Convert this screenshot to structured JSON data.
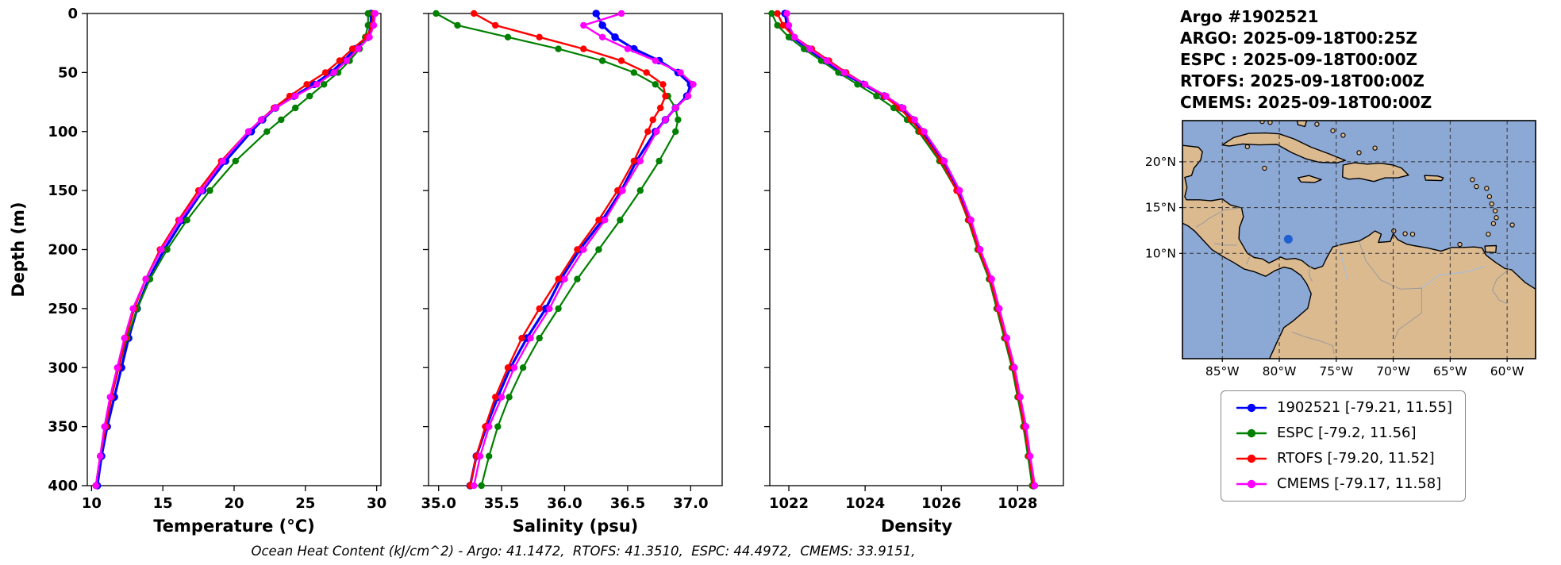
{
  "header": {
    "title": "Argo #1902521",
    "lines": [
      "ARGO: 2025-09-18T00:25Z",
      "ESPC : 2025-09-18T00:00Z",
      "RTOFS: 2025-09-18T00:00Z",
      "CMEMS: 2025-09-18T00:00Z"
    ]
  },
  "footer": "Ocean Heat Content (kJ/cm^2) - Argo: 41.1472,  RTOFS: 41.3510,  ESPC: 44.4972,  CMEMS: 33.9151,",
  "legend": [
    {
      "name": "1902521",
      "label": "1902521 [-79.21, 11.55]",
      "color": "#0000ff"
    },
    {
      "name": "ESPC",
      "label": "ESPC [-79.2, 11.56]",
      "color": "#008000"
    },
    {
      "name": "RTOFS",
      "label": "RTOFS [-79.20, 11.52]",
      "color": "#ff0000"
    },
    {
      "name": "CMEMS",
      "label": "CMEMS [-79.17, 11.58]",
      "color": "#ff00ff"
    }
  ],
  "map": {
    "lat_ticks": [
      {
        "value": 20,
        "label": "20°N"
      },
      {
        "value": 15,
        "label": "15°N"
      },
      {
        "value": 10,
        "label": "10°N"
      }
    ],
    "lon_ticks": [
      {
        "value": -85,
        "label": "85°W"
      },
      {
        "value": -80,
        "label": "80°W"
      },
      {
        "value": -75,
        "label": "75°W"
      },
      {
        "value": -70,
        "label": "70°W"
      },
      {
        "value": -65,
        "label": "65°W"
      },
      {
        "value": -60,
        "label": "60°W"
      }
    ],
    "marker": {
      "lon": -79.21,
      "lat": 11.55,
      "color": "#1f5fd0"
    },
    "colors": {
      "ocean": "#8ca8d4",
      "land": "#dcba90",
      "coast": "#000000"
    }
  },
  "chart_data": {
    "type": "line",
    "title": "Argo float 1902521 profiles vs ESPC, RTOFS, CMEMS models",
    "ylabel": "Depth (m)",
    "ylim": [
      0,
      400
    ],
    "y_ticks": [
      0,
      50,
      100,
      150,
      200,
      250,
      300,
      350,
      400
    ],
    "depths": [
      0,
      10,
      20,
      30,
      40,
      50,
      60,
      70,
      80,
      90,
      100,
      125,
      150,
      175,
      200,
      225,
      250,
      275,
      300,
      325,
      350,
      375,
      400
    ],
    "panels": [
      {
        "key": "temperature",
        "xlabel": "Temperature (°C)",
        "xlim": [
          9.7,
          30.3
        ],
        "x_ticks": [
          10,
          15,
          20,
          25,
          30
        ],
        "x_tick_labels": [
          "10",
          "15",
          "20",
          "25",
          "30"
        ]
      },
      {
        "key": "salinity",
        "xlabel": "Salinity (psu)",
        "xlim": [
          34.92,
          37.25
        ],
        "x_ticks": [
          35.0,
          35.5,
          36.0,
          36.5,
          37.0
        ],
        "x_tick_labels": [
          "35.0",
          "35.5",
          "36.0",
          "36.5",
          "37.0"
        ]
      },
      {
        "key": "density",
        "xlabel": "Density",
        "xlim": [
          1021.5,
          1029.2
        ],
        "x_ticks": [
          1022,
          1024,
          1026,
          1028
        ],
        "x_tick_labels": [
          "1022",
          "1024",
          "1026",
          "1028"
        ]
      }
    ],
    "series": [
      {
        "name": "1902521",
        "color": "#0000ff",
        "line_width": 3.2,
        "marker_size": 4.8,
        "temperature": [
          29.6,
          29.6,
          29.4,
          28.5,
          27.7,
          26.8,
          25.6,
          24.2,
          22.9,
          22.0,
          21.2,
          19.4,
          17.8,
          16.4,
          15.1,
          14.0,
          13.2,
          12.6,
          12.1,
          11.6,
          11.1,
          10.7,
          10.4
        ],
        "salinity": [
          36.25,
          36.3,
          36.4,
          36.55,
          36.75,
          36.9,
          37.0,
          36.97,
          36.88,
          36.8,
          36.72,
          36.57,
          36.45,
          36.3,
          36.12,
          35.97,
          35.85,
          35.7,
          35.57,
          35.47,
          35.38,
          35.3,
          35.25
        ],
        "density": [
          1021.9,
          1021.95,
          1022.1,
          1022.5,
          1022.95,
          1023.4,
          1023.95,
          1024.5,
          1024.95,
          1025.25,
          1025.5,
          1026.05,
          1026.45,
          1026.75,
          1027.0,
          1027.3,
          1027.5,
          1027.7,
          1027.9,
          1028.05,
          1028.2,
          1028.3,
          1028.42
        ]
      },
      {
        "name": "ESPC",
        "color": "#008000",
        "line_width": 2.2,
        "marker_size": 4.2,
        "temperature": [
          29.4,
          29.4,
          29.2,
          28.8,
          28.1,
          27.3,
          26.3,
          25.3,
          24.3,
          23.3,
          22.3,
          20.1,
          18.3,
          16.7,
          15.3,
          14.1,
          13.2,
          12.5,
          11.9,
          11.4,
          11.0,
          10.6,
          10.3
        ],
        "salinity": [
          34.98,
          35.15,
          35.55,
          35.95,
          36.3,
          36.55,
          36.72,
          36.82,
          36.88,
          36.9,
          36.88,
          36.75,
          36.6,
          36.44,
          36.27,
          36.1,
          35.95,
          35.8,
          35.67,
          35.56,
          35.47,
          35.4,
          35.34
        ],
        "density": [
          1021.55,
          1021.7,
          1022.0,
          1022.4,
          1022.85,
          1023.3,
          1023.8,
          1024.3,
          1024.75,
          1025.1,
          1025.4,
          1025.95,
          1026.4,
          1026.7,
          1026.95,
          1027.25,
          1027.45,
          1027.65,
          1027.85,
          1028.0,
          1028.15,
          1028.27,
          1028.38
        ]
      },
      {
        "name": "RTOFS",
        "color": "#ff0000",
        "line_width": 2.4,
        "marker_size": 4.2,
        "temperature": [
          29.8,
          29.7,
          29.3,
          28.3,
          27.4,
          26.4,
          25.1,
          23.9,
          22.8,
          21.9,
          21.0,
          19.1,
          17.5,
          16.1,
          14.8,
          13.8,
          13.0,
          12.4,
          11.9,
          11.4,
          11.0,
          10.6,
          10.3
        ],
        "salinity": [
          35.28,
          35.45,
          35.8,
          36.15,
          36.45,
          36.65,
          36.78,
          36.8,
          36.76,
          36.7,
          36.66,
          36.55,
          36.42,
          36.27,
          36.1,
          35.95,
          35.8,
          35.66,
          35.55,
          35.45,
          35.37,
          35.3,
          35.25
        ],
        "density": [
          1021.7,
          1021.85,
          1022.15,
          1022.6,
          1023.05,
          1023.5,
          1024.0,
          1024.5,
          1024.9,
          1025.2,
          1025.45,
          1026.0,
          1026.4,
          1026.72,
          1026.98,
          1027.28,
          1027.48,
          1027.68,
          1027.88,
          1028.03,
          1028.18,
          1028.3,
          1028.42
        ]
      },
      {
        "name": "CMEMS",
        "color": "#ff00ff",
        "line_width": 2.4,
        "marker_size": 4.2,
        "temperature": [
          29.9,
          29.8,
          29.5,
          28.7,
          27.9,
          27.0,
          25.8,
          24.3,
          22.9,
          21.9,
          21.0,
          19.2,
          17.7,
          16.2,
          14.9,
          13.8,
          12.9,
          12.3,
          11.8,
          11.3,
          10.9,
          10.6,
          10.3
        ],
        "salinity": [
          36.45,
          36.15,
          36.3,
          36.5,
          36.72,
          36.92,
          37.02,
          36.98,
          36.88,
          36.8,
          36.73,
          36.6,
          36.46,
          36.32,
          36.15,
          36.0,
          35.88,
          35.73,
          35.6,
          35.5,
          35.4,
          35.33,
          35.28
        ],
        "density": [
          1021.95,
          1022.0,
          1022.15,
          1022.55,
          1023.0,
          1023.45,
          1024.0,
          1024.55,
          1025.0,
          1025.3,
          1025.55,
          1026.08,
          1026.48,
          1026.78,
          1027.02,
          1027.32,
          1027.52,
          1027.72,
          1027.92,
          1028.07,
          1028.22,
          1028.33,
          1028.45
        ]
      }
    ]
  }
}
